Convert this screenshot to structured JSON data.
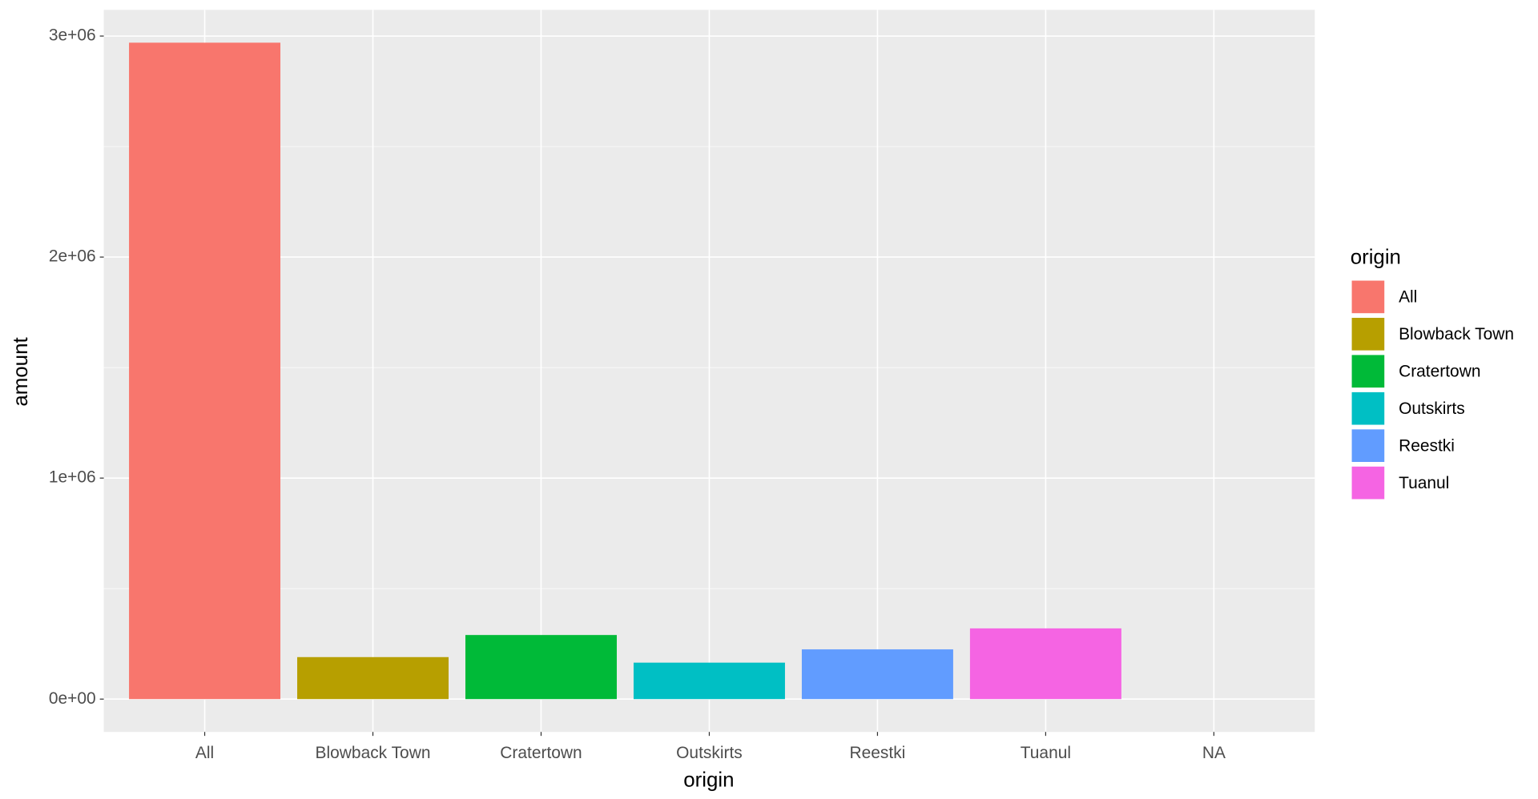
{
  "chart_data": {
    "type": "bar",
    "x_label": "origin",
    "y_label": "amount",
    "legend_title": "origin",
    "categories": [
      "All",
      "Blowback Town",
      "Cratertown",
      "Outskirts",
      "Reestki",
      "Tuanul",
      "NA"
    ],
    "values": [
      2970000,
      190000,
      290000,
      165000,
      225000,
      320000,
      null
    ],
    "colors": [
      "#F8766D",
      "#B79F00",
      "#00BA38",
      "#00BFC4",
      "#619CFF",
      "#F564E3",
      null
    ],
    "ylim": [
      -148500,
      3118500
    ],
    "yticks": [
      {
        "value": 0,
        "label": "0e+00"
      },
      {
        "value": 1000000,
        "label": "1e+06"
      },
      {
        "value": 2000000,
        "label": "2e+06"
      },
      {
        "value": 3000000,
        "label": "3e+06"
      }
    ],
    "grid": true
  }
}
